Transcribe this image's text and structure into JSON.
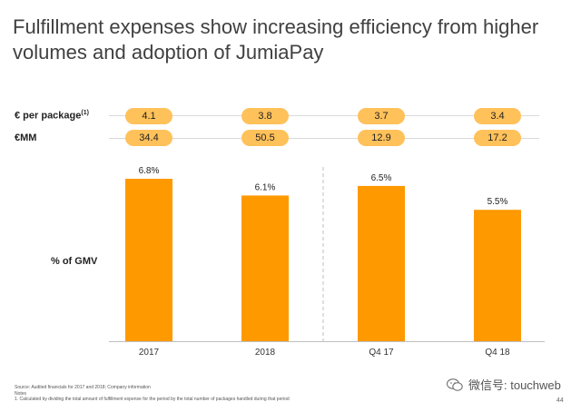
{
  "title": "Fulfillment expenses show increasing efficiency from higher volumes and adoption of JumiaPay",
  "rows": {
    "per_package_label": "€ per package",
    "per_package_sup": "(1)",
    "per_package_values": [
      "4.1",
      "3.8",
      "3.7",
      "3.4"
    ],
    "mm_label": "€MM",
    "mm_values": [
      "34.4",
      "50.5",
      "12.9",
      "17.2"
    ]
  },
  "gmv_label": "% of GMV",
  "chart_data": {
    "type": "bar",
    "categories": [
      "2017",
      "2018",
      "Q4 17",
      "Q4 18"
    ],
    "values": [
      6.8,
      6.1,
      6.5,
      5.5
    ],
    "data_labels": [
      "6.8%",
      "6.1%",
      "6.5%",
      "5.5%"
    ],
    "ylabel": "% of GMV",
    "ylim": [
      0,
      6.8
    ],
    "grid": false,
    "bar_color": "#ff9900"
  },
  "footnotes": {
    "source": "Source: Audited financials for 2017 and 2018; Company information",
    "notes_header": "Notes",
    "note1": "1.   Calculated by dividing the total amount of fulfillment expense for the period by the total number of packages handled during that period"
  },
  "page_number": "44",
  "watermark_text": "微信号: touchweb",
  "watermark_icon": "wechat-icon"
}
